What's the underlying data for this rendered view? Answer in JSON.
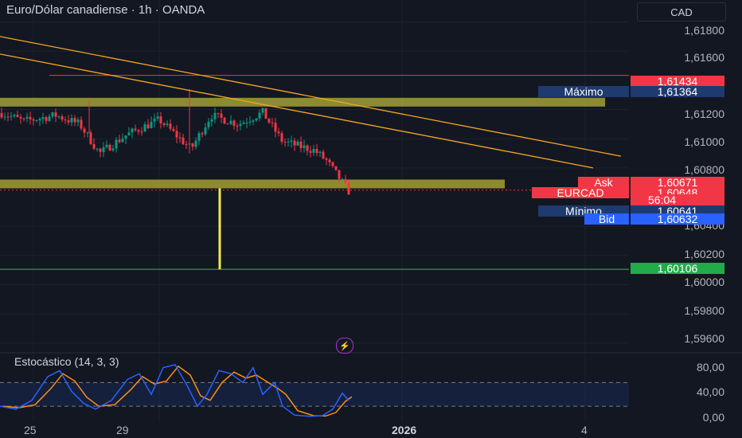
{
  "header": {
    "title": "Euro/Dólar canadiense · 1h · OANDA",
    "currency_button": "CAD"
  },
  "price_axis": {
    "labels": [
      "1,61800",
      "1,61600",
      "1,61200",
      "1,61000",
      "1,60800",
      "1,60400",
      "1,60200",
      "1,60000",
      "1,59800",
      "1,59600"
    ]
  },
  "time_axis": {
    "labels": [
      "25",
      "29",
      "2026",
      "4"
    ]
  },
  "price_tags": {
    "resistance": {
      "value": "1,61434",
      "color": "#f23645"
    },
    "max": {
      "label": "Máximo",
      "value": "1,61364",
      "color": "#1e3a6e"
    },
    "ask": {
      "label": "Ask",
      "value": "1,60671",
      "color": "#f23645"
    },
    "symbol": {
      "label": "EURCAD",
      "value": "1,60648",
      "countdown": "56:04",
      "color": "#f23645"
    },
    "min": {
      "label": "Mínimo",
      "value": "1,60641",
      "color": "#1e3a6e"
    },
    "bid": {
      "label": "Bid",
      "value": "1,60632",
      "color": "#2962ff"
    },
    "support": {
      "value": "1,60106",
      "color": "#22ab4a"
    }
  },
  "stochastic": {
    "title": "Estocástico (14, 3, 3)",
    "axis_labels": [
      "80,00",
      "40,00",
      "0,00"
    ],
    "k_color": "#2962ff",
    "d_color": "#ff8c1a"
  },
  "colors": {
    "background": "#131722",
    "up_candle": "#089981",
    "down_candle": "#f23645",
    "zone": "#b5b335",
    "trendline": "#f5a623",
    "yellow_line": "#f2e94e"
  },
  "chart_data": {
    "type": "candlestick",
    "title": "Euro/Dólar canadiense · 1h · OANDA",
    "y_range": [
      1.5955,
      1.6195
    ],
    "x_ticks": [
      "25",
      "29",
      "2026",
      "4"
    ],
    "levels": {
      "resistance": 1.61434,
      "max": 1.61364,
      "last": 1.60648,
      "ask": 1.60671,
      "bid": 1.60632,
      "min": 1.60641,
      "target": 1.60106
    },
    "zones": [
      [
        1.6122,
        1.6128
      ],
      [
        1.6066,
        1.6072
      ]
    ],
    "trendlines": [
      [
        [
          0,
          1.617
        ],
        [
          780,
          1.6088
        ]
      ],
      [
        [
          0,
          1.6158
        ],
        [
          745,
          1.608
        ]
      ]
    ],
    "stochastic": {
      "bands": [
        20,
        60
      ],
      "range": [
        0,
        90
      ]
    }
  }
}
